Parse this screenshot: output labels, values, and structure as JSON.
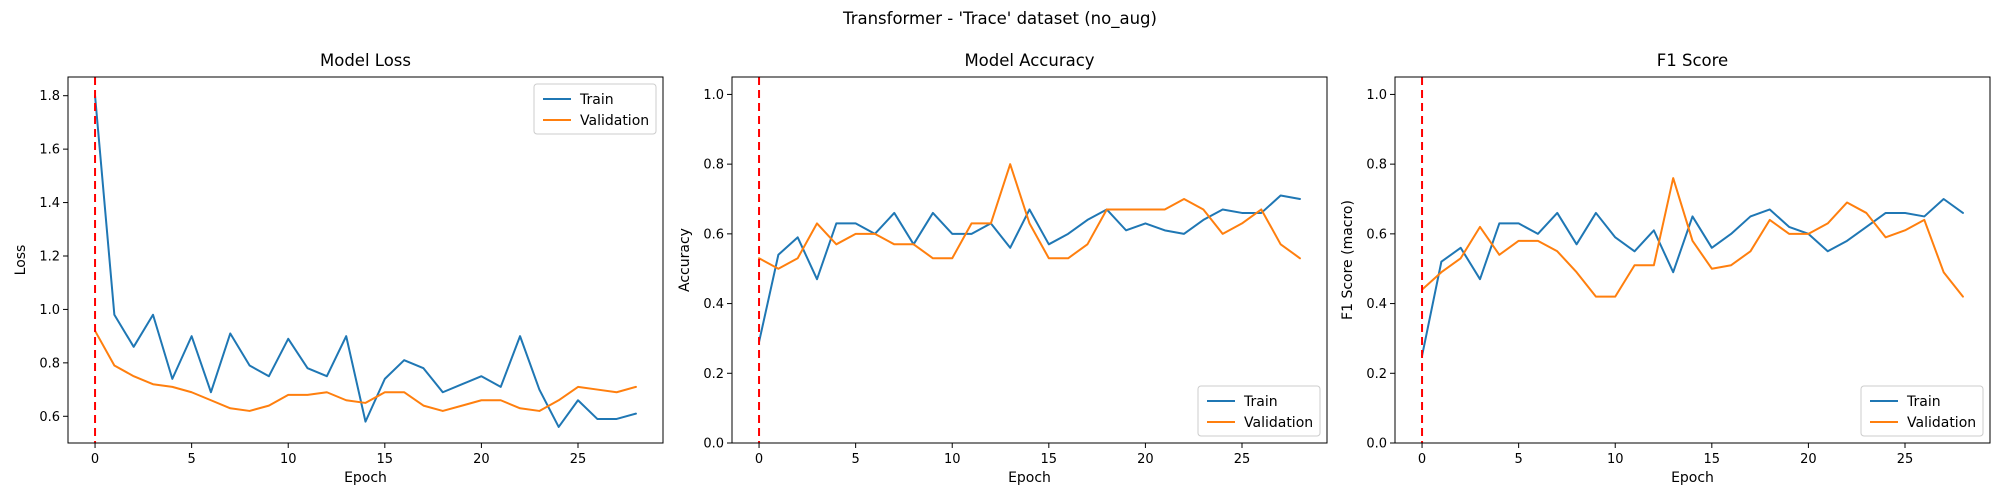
{
  "figure": {
    "suptitle": "Transformer - 'Trace' dataset (no_aug)"
  },
  "colors": {
    "train": "#1f77b4",
    "validation": "#ff7f0e",
    "marker": "#ff0000"
  },
  "chart_data": [
    {
      "type": "line",
      "title": "Model Loss",
      "xlabel": "Epoch",
      "ylabel": "Loss",
      "xlim": [
        -1.4,
        29.4
      ],
      "ylim": [
        0.5,
        1.87
      ],
      "xticks": [
        0,
        5,
        10,
        15,
        20,
        25
      ],
      "yticks": [
        0.6,
        0.8,
        1.0,
        1.2,
        1.4,
        1.6,
        1.8
      ],
      "ytick_decimals": 1,
      "grid": false,
      "legend_position": "top-right",
      "vline_x": 0,
      "x": [
        0,
        1,
        2,
        3,
        4,
        5,
        6,
        7,
        8,
        9,
        10,
        11,
        12,
        13,
        14,
        15,
        16,
        17,
        18,
        19,
        20,
        21,
        22,
        23,
        24,
        25,
        26,
        27,
        28
      ],
      "series": [
        {
          "name": "Train",
          "color_key": "train",
          "values": [
            1.8,
            0.98,
            0.86,
            0.98,
            0.74,
            0.9,
            0.69,
            0.91,
            0.79,
            0.75,
            0.89,
            0.78,
            0.75,
            0.9,
            0.58,
            0.74,
            0.81,
            0.78,
            0.69,
            0.72,
            0.75,
            0.71,
            0.9,
            0.7,
            0.56,
            0.66,
            0.59,
            0.59,
            0.61
          ]
        },
        {
          "name": "Validation",
          "color_key": "validation",
          "values": [
            0.92,
            0.79,
            0.75,
            0.72,
            0.71,
            0.69,
            0.66,
            0.63,
            0.62,
            0.64,
            0.68,
            0.68,
            0.69,
            0.66,
            0.65,
            0.69,
            0.69,
            0.64,
            0.62,
            0.64,
            0.66,
            0.66,
            0.63,
            0.62,
            0.66,
            0.71,
            0.7,
            0.69,
            0.71
          ]
        }
      ]
    },
    {
      "type": "line",
      "title": "Model Accuracy",
      "xlabel": "Epoch",
      "ylabel": "Accuracy",
      "xlim": [
        -1.4,
        29.4
      ],
      "ylim": [
        0.0,
        1.05
      ],
      "xticks": [
        0,
        5,
        10,
        15,
        20,
        25
      ],
      "yticks": [
        0.0,
        0.2,
        0.4,
        0.6,
        0.8,
        1.0
      ],
      "ytick_decimals": 1,
      "grid": false,
      "legend_position": "bottom-right",
      "vline_x": 0,
      "x": [
        0,
        1,
        2,
        3,
        4,
        5,
        6,
        7,
        8,
        9,
        10,
        11,
        12,
        13,
        14,
        15,
        16,
        17,
        18,
        19,
        20,
        21,
        22,
        23,
        24,
        25,
        26,
        27,
        28
      ],
      "series": [
        {
          "name": "Train",
          "color_key": "train",
          "values": [
            0.29,
            0.54,
            0.59,
            0.47,
            0.63,
            0.63,
            0.6,
            0.66,
            0.57,
            0.66,
            0.6,
            0.6,
            0.63,
            0.56,
            0.67,
            0.57,
            0.6,
            0.64,
            0.67,
            0.61,
            0.63,
            0.61,
            0.6,
            0.64,
            0.67,
            0.66,
            0.66,
            0.71,
            0.7
          ]
        },
        {
          "name": "Validation",
          "color_key": "validation",
          "values": [
            0.53,
            0.5,
            0.53,
            0.63,
            0.57,
            0.6,
            0.6,
            0.57,
            0.57,
            0.53,
            0.53,
            0.63,
            0.63,
            0.8,
            0.63,
            0.53,
            0.53,
            0.57,
            0.67,
            0.67,
            0.67,
            0.67,
            0.7,
            0.67,
            0.6,
            0.63,
            0.67,
            0.57,
            0.53
          ]
        }
      ]
    },
    {
      "type": "line",
      "title": "F1 Score",
      "xlabel": "Epoch",
      "ylabel": "F1 Score (macro)",
      "xlim": [
        -1.4,
        29.4
      ],
      "ylim": [
        0.0,
        1.05
      ],
      "xticks": [
        0,
        5,
        10,
        15,
        20,
        25
      ],
      "yticks": [
        0.0,
        0.2,
        0.4,
        0.6,
        0.8,
        1.0
      ],
      "ytick_decimals": 1,
      "grid": false,
      "legend_position": "bottom-right",
      "vline_x": 0,
      "x": [
        0,
        1,
        2,
        3,
        4,
        5,
        6,
        7,
        8,
        9,
        10,
        11,
        12,
        13,
        14,
        15,
        16,
        17,
        18,
        19,
        20,
        21,
        22,
        23,
        24,
        25,
        26,
        27,
        28
      ],
      "series": [
        {
          "name": "Train",
          "color_key": "train",
          "values": [
            0.25,
            0.52,
            0.56,
            0.47,
            0.63,
            0.63,
            0.6,
            0.66,
            0.57,
            0.66,
            0.59,
            0.55,
            0.61,
            0.49,
            0.65,
            0.56,
            0.6,
            0.65,
            0.67,
            0.62,
            0.6,
            0.55,
            0.58,
            0.62,
            0.66,
            0.66,
            0.65,
            0.7,
            0.66
          ]
        },
        {
          "name": "Validation",
          "color_key": "validation",
          "values": [
            0.44,
            0.49,
            0.53,
            0.62,
            0.54,
            0.58,
            0.58,
            0.55,
            0.49,
            0.42,
            0.42,
            0.51,
            0.51,
            0.76,
            0.58,
            0.5,
            0.51,
            0.55,
            0.64,
            0.6,
            0.6,
            0.63,
            0.69,
            0.66,
            0.59,
            0.61,
            0.64,
            0.49,
            0.42
          ]
        }
      ]
    }
  ]
}
